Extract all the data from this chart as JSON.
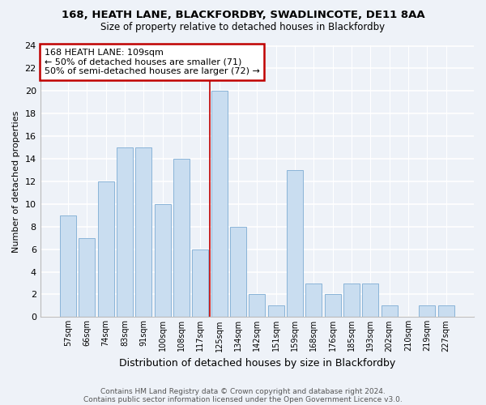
{
  "title1": "168, HEATH LANE, BLACKFORDBY, SWADLINCOTE, DE11 8AA",
  "title2": "Size of property relative to detached houses in Blackfordby",
  "xlabel": "Distribution of detached houses by size in Blackfordby",
  "ylabel": "Number of detached properties",
  "bin_labels": [
    "57sqm",
    "66sqm",
    "74sqm",
    "83sqm",
    "91sqm",
    "100sqm",
    "108sqm",
    "117sqm",
    "125sqm",
    "134sqm",
    "142sqm",
    "151sqm",
    "159sqm",
    "168sqm",
    "176sqm",
    "185sqm",
    "193sqm",
    "202sqm",
    "210sqm",
    "219sqm",
    "227sqm"
  ],
  "bar_values": [
    9,
    7,
    12,
    15,
    15,
    10,
    14,
    6,
    20,
    8,
    2,
    1,
    13,
    3,
    2,
    3,
    3,
    1,
    0,
    1,
    1
  ],
  "bar_color": "#c9ddf0",
  "bar_edge_color": "#8ab4d8",
  "ylim": [
    0,
    24
  ],
  "yticks": [
    0,
    2,
    4,
    6,
    8,
    10,
    12,
    14,
    16,
    18,
    20,
    22,
    24
  ],
  "annotation_title": "168 HEATH LANE: 109sqm",
  "annotation_line1": "← 50% of detached houses are smaller (71)",
  "annotation_line2": "50% of semi-detached houses are larger (72) →",
  "annotation_box_facecolor": "#ffffff",
  "annotation_box_edgecolor": "#c00000",
  "vline_color": "#c00000",
  "vline_x": 7.5,
  "footer1": "Contains HM Land Registry data © Crown copyright and database right 2024.",
  "footer2": "Contains public sector information licensed under the Open Government Licence v3.0.",
  "bg_color": "#eef2f8",
  "grid_color": "#ffffff",
  "title1_fontsize": 9.5,
  "title2_fontsize": 8.5,
  "ylabel_fontsize": 8,
  "xlabel_fontsize": 9,
  "tick_fontsize": 8,
  "xtick_fontsize": 7,
  "ann_fontsize": 8,
  "footer_fontsize": 6.5
}
